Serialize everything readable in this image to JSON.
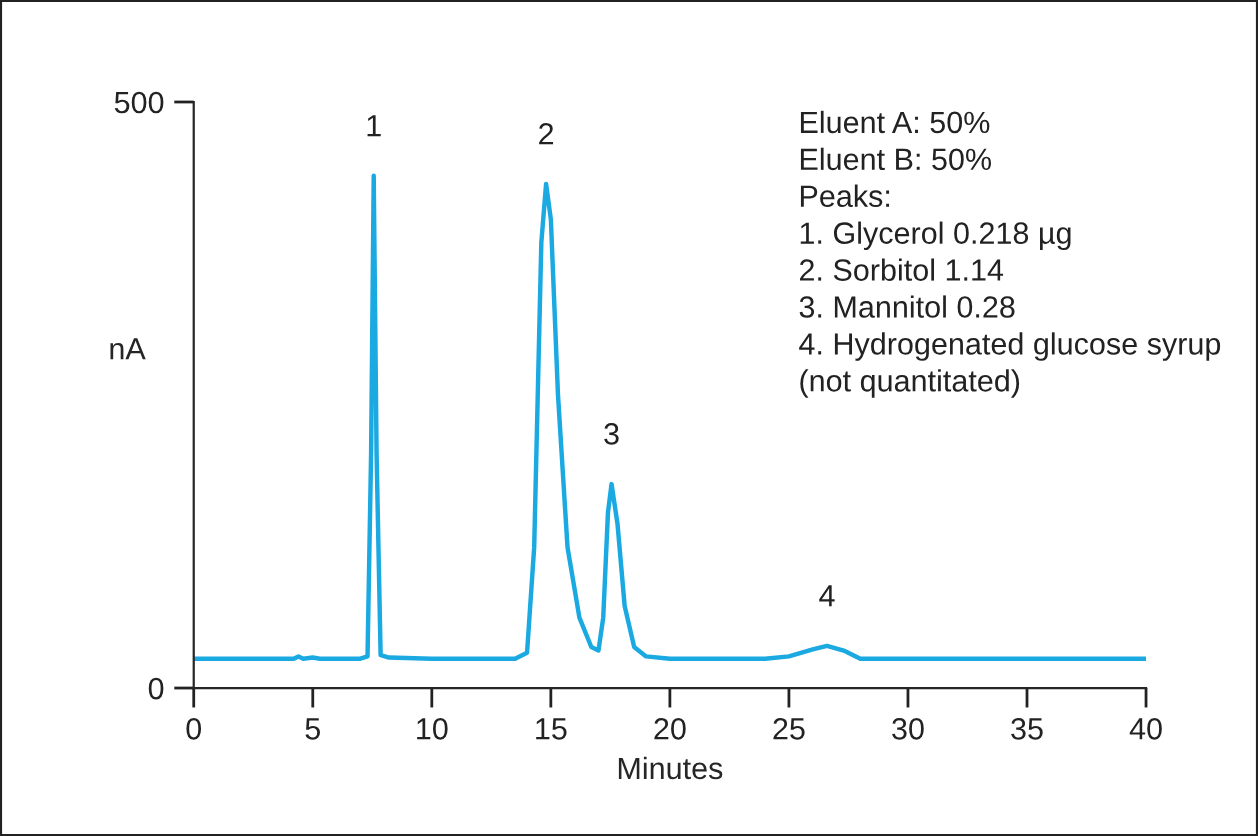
{
  "chart_data": {
    "type": "line",
    "xlabel": "Minutes",
    "ylabel": "nA",
    "xlim": [
      0,
      40
    ],
    "xticks": [
      0,
      5,
      10,
      15,
      20,
      25,
      30,
      35,
      40
    ],
    "ylim": [
      0,
      500
    ],
    "yticks": [
      0,
      500
    ],
    "grid": false,
    "legend": false,
    "series": [
      {
        "color": "#1ba9e1",
        "x": [
          0,
          4.2,
          4.4,
          4.6,
          5,
          5.3,
          7.0,
          7.3,
          7.45,
          7.56,
          7.68,
          7.85,
          8.2,
          10,
          13.5,
          14.0,
          14.3,
          14.6,
          14.8,
          15.0,
          15.3,
          15.7,
          16.2,
          16.7,
          17.0,
          17.2,
          17.4,
          17.55,
          17.8,
          18.1,
          18.5,
          19,
          20,
          24,
          25,
          26,
          26.6,
          27.3,
          28,
          40
        ],
        "values": [
          25,
          25,
          27,
          25,
          26,
          25,
          25,
          27,
          200,
          437,
          200,
          28,
          26,
          25,
          25,
          30,
          120,
          380,
          430,
          400,
          250,
          120,
          60,
          35,
          32,
          60,
          150,
          174,
          140,
          70,
          35,
          27,
          25,
          25,
          27,
          33,
          36,
          32,
          25,
          25
        ]
      }
    ],
    "annotations": [
      {
        "text": "1",
        "x": 7.56,
        "y": 437
      },
      {
        "text": "2",
        "x": 14.8,
        "y": 430
      },
      {
        "text": "3",
        "x": 17.55,
        "y": 174
      },
      {
        "text": "4",
        "x": 26.6,
        "y": 36
      },
      "Eluent A: 50%",
      "Eluent B: 50%",
      "Peaks:",
      "1. Glycerol 0.218 µg",
      "2. Sorbitol 1.14",
      "3. Mannitol 0.28",
      "4. Hydrogenated glucose syrup",
      "(not quantitated)"
    ]
  }
}
